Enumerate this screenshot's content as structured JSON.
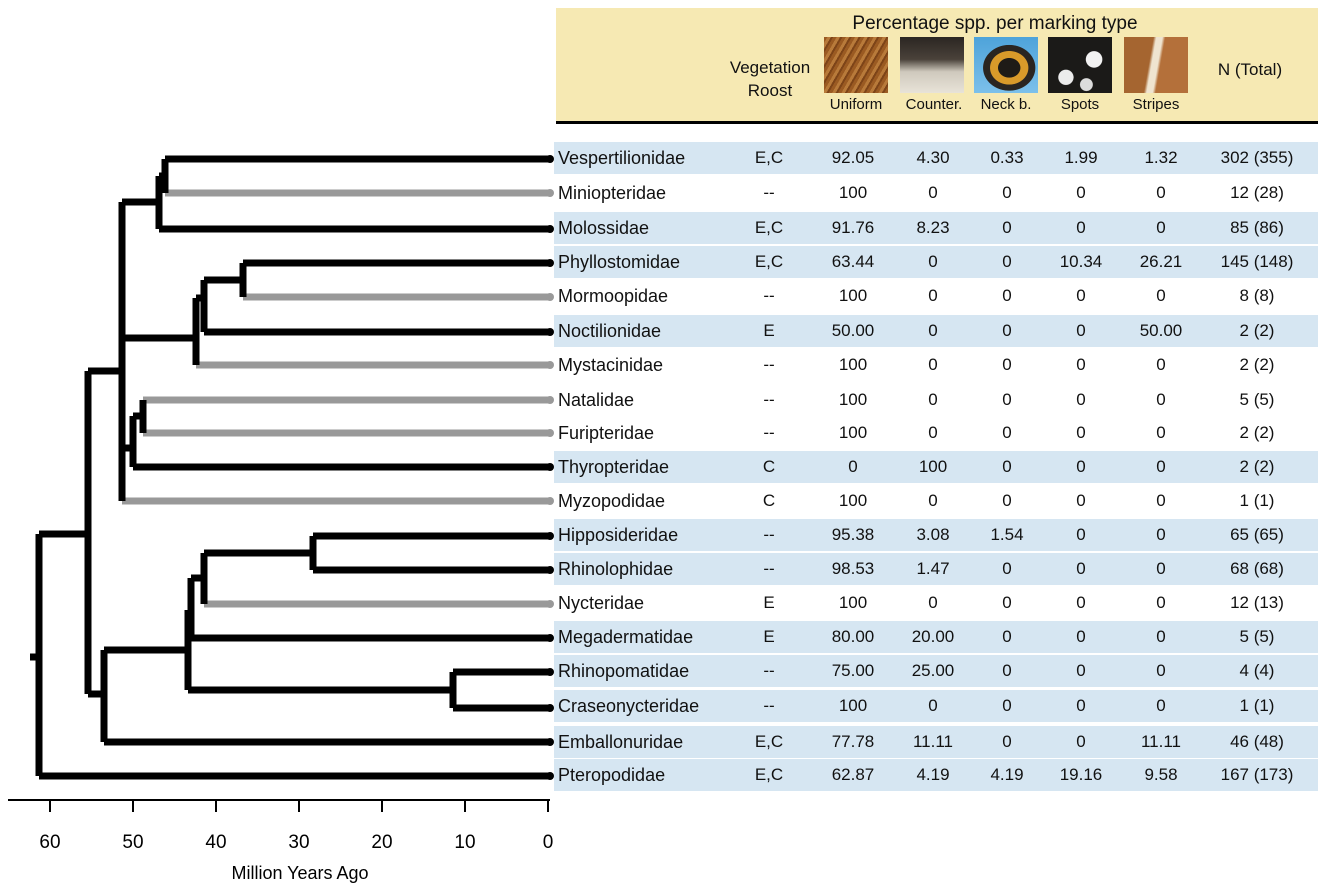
{
  "header": {
    "title": "Percentage spp. per marking type",
    "vegetation_roost": "Vegetation Roost",
    "n_total": "N (Total)",
    "marking_types": [
      {
        "label": "Uniform"
      },
      {
        "label": "Counter."
      },
      {
        "label": "Neck b."
      },
      {
        "label": "Spots"
      },
      {
        "label": "Stripes"
      }
    ]
  },
  "axis": {
    "label": "Million Years Ago",
    "ticks": [
      "60",
      "50",
      "40",
      "30",
      "20",
      "10",
      "0"
    ]
  },
  "rows": [
    {
      "family": "Vespertilionidae",
      "roost": "E,C",
      "uniform": "92.05",
      "counter": "4.30",
      "neck": "0.33",
      "spots": "1.99",
      "stripes": "1.32",
      "n": "302 (355)"
    },
    {
      "family": "Miniopteridae",
      "roost": "--",
      "uniform": "100",
      "counter": "0",
      "neck": "0",
      "spots": "0",
      "stripes": "0",
      "n": "12 (28)"
    },
    {
      "family": "Molossidae",
      "roost": "E,C",
      "uniform": "91.76",
      "counter": "8.23",
      "neck": "0",
      "spots": "0",
      "stripes": "0",
      "n": "85 (86)"
    },
    {
      "family": "Phyllostomidae",
      "roost": "E,C",
      "uniform": "63.44",
      "counter": "0",
      "neck": "0",
      "spots": "10.34",
      "stripes": "26.21",
      "n": "145 (148)"
    },
    {
      "family": "Mormoopidae",
      "roost": "--",
      "uniform": "100",
      "counter": "0",
      "neck": "0",
      "spots": "0",
      "stripes": "0",
      "n": "8 (8)"
    },
    {
      "family": "Noctilionidae",
      "roost": "E",
      "uniform": "50.00",
      "counter": "0",
      "neck": "0",
      "spots": "0",
      "stripes": "50.00",
      "n": "2 (2)"
    },
    {
      "family": "Mystacinidae",
      "roost": "--",
      "uniform": "100",
      "counter": "0",
      "neck": "0",
      "spots": "0",
      "stripes": "0",
      "n": "2 (2)"
    },
    {
      "family": "Natalidae",
      "roost": "--",
      "uniform": "100",
      "counter": "0",
      "neck": "0",
      "spots": "0",
      "stripes": "0",
      "n": "5 (5)"
    },
    {
      "family": "Furipteridae",
      "roost": "--",
      "uniform": "100",
      "counter": "0",
      "neck": "0",
      "spots": "0",
      "stripes": "0",
      "n": "2 (2)"
    },
    {
      "family": "Thyropteridae",
      "roost": "C",
      "uniform": "0",
      "counter": "100",
      "neck": "0",
      "spots": "0",
      "stripes": "0",
      "n": "2 (2)"
    },
    {
      "family": "Myzopodidae",
      "roost": "C",
      "uniform": "100",
      "counter": "0",
      "neck": "0",
      "spots": "0",
      "stripes": "0",
      "n": "1 (1)"
    },
    {
      "family": "Hipposideridae",
      "roost": "--",
      "uniform": "95.38",
      "counter": "3.08",
      "neck": "1.54",
      "spots": "0",
      "stripes": "0",
      "n": "65 (65)"
    },
    {
      "family": "Rhinolophidae",
      "roost": "--",
      "uniform": "98.53",
      "counter": "1.47",
      "neck": "0",
      "spots": "0",
      "stripes": "0",
      "n": "68 (68)"
    },
    {
      "family": "Nycteridae",
      "roost": "E",
      "uniform": "100",
      "counter": "0",
      "neck": "0",
      "spots": "0",
      "stripes": "0",
      "n": "12 (13)"
    },
    {
      "family": "Megadermatidae",
      "roost": "E",
      "uniform": "80.00",
      "counter": "20.00",
      "neck": "0",
      "spots": "0",
      "stripes": "0",
      "n": "5 (5)"
    },
    {
      "family": "Rhinopomatidae",
      "roost": "--",
      "uniform": "75.00",
      "counter": "25.00",
      "neck": "0",
      "spots": "0",
      "stripes": "0",
      "n": "4 (4)"
    },
    {
      "family": "Craseonycteridae",
      "roost": "--",
      "uniform": "100",
      "counter": "0",
      "neck": "0",
      "spots": "0",
      "stripes": "0",
      "n": "1 (1)"
    },
    {
      "family": "Emballonuridae",
      "roost": "E,C",
      "uniform": "77.78",
      "counter": "11.11",
      "neck": "0",
      "spots": "0",
      "stripes": "11.11",
      "n": "46 (48)"
    },
    {
      "family": "Pteropodidae",
      "roost": "E,C",
      "uniform": "62.87",
      "counter": "4.19",
      "neck": "4.19",
      "spots": "19.16",
      "stripes": "9.58",
      "n": "167 (173)"
    }
  ],
  "colors": {
    "header_bg": "#f6e9b3",
    "row_shade": "#d6e6f2",
    "branch_vegetation": "#000000",
    "branch_no_vegetation": "#999999"
  }
}
